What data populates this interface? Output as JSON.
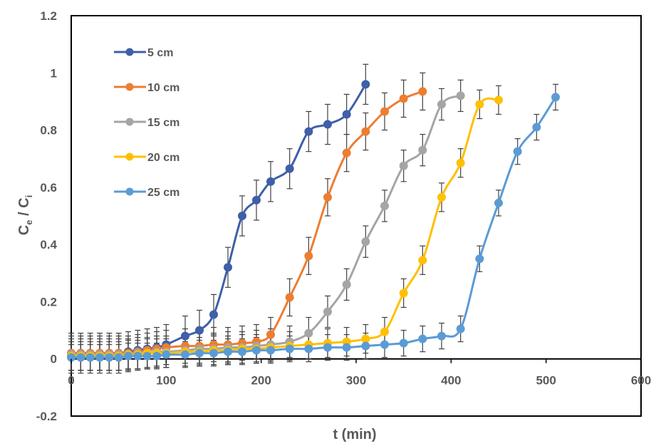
{
  "chart_data": {
    "type": "line",
    "title": "",
    "xlabel": "t (min)",
    "ylabel": "Ce / Ci",
    "ylabel_parts": {
      "main1": "C",
      "sub1": "e",
      "sep": " / ",
      "main2": "C",
      "sub2": "i"
    },
    "xlim": [
      0,
      600
    ],
    "ylim": [
      -0.2,
      1.2
    ],
    "x_ticks": [
      "0",
      "100",
      "200",
      "300",
      "400",
      "500",
      "600"
    ],
    "y_ticks": [
      "-0.2",
      "0",
      "0.2",
      "0.4",
      "0.6",
      "0.8",
      "1",
      "1.2"
    ],
    "grid": false,
    "legend_position": "top-left",
    "series": [
      {
        "name": "5 cm",
        "color": "#3f5fa8",
        "x": [
          0,
          10,
          20,
          30,
          40,
          50,
          60,
          70,
          80,
          90,
          100,
          120,
          135,
          150,
          165,
          180,
          195,
          210,
          230,
          250,
          270,
          290,
          310
        ],
        "y": [
          0.02,
          0.02,
          0.02,
          0.02,
          0.02,
          0.02,
          0.025,
          0.03,
          0.035,
          0.04,
          0.05,
          0.08,
          0.1,
          0.155,
          0.32,
          0.5,
          0.555,
          0.62,
          0.665,
          0.795,
          0.82,
          0.855,
          0.96
        ],
        "err": [
          0.07,
          0.07,
          0.07,
          0.07,
          0.07,
          0.07,
          0.07,
          0.07,
          0.07,
          0.07,
          0.07,
          0.07,
          0.07,
          0.07,
          0.07,
          0.07,
          0.07,
          0.07,
          0.07,
          0.07,
          0.07,
          0.07,
          0.07
        ]
      },
      {
        "name": "10 cm",
        "color": "#ed7d31",
        "x": [
          0,
          10,
          20,
          30,
          40,
          50,
          60,
          70,
          80,
          90,
          100,
          120,
          135,
          150,
          165,
          180,
          195,
          210,
          230,
          250,
          270,
          290,
          310,
          330,
          350,
          370
        ],
        "y": [
          0.02,
          0.02,
          0.02,
          0.02,
          0.02,
          0.02,
          0.02,
          0.025,
          0.03,
          0.035,
          0.04,
          0.045,
          0.045,
          0.05,
          0.05,
          0.055,
          0.06,
          0.085,
          0.215,
          0.36,
          0.565,
          0.72,
          0.795,
          0.865,
          0.91,
          0.935
        ],
        "err": [
          0.06,
          0.06,
          0.06,
          0.06,
          0.06,
          0.06,
          0.06,
          0.06,
          0.06,
          0.06,
          0.06,
          0.06,
          0.06,
          0.06,
          0.06,
          0.06,
          0.06,
          0.06,
          0.065,
          0.065,
          0.065,
          0.065,
          0.065,
          0.065,
          0.065,
          0.065
        ]
      },
      {
        "name": "15 cm",
        "color": "#a5a5a5",
        "x": [
          0,
          10,
          20,
          30,
          40,
          50,
          60,
          70,
          80,
          90,
          100,
          120,
          135,
          150,
          165,
          180,
          195,
          210,
          230,
          250,
          270,
          290,
          310,
          330,
          350,
          370,
          390,
          410
        ],
        "y": [
          0.015,
          0.015,
          0.015,
          0.015,
          0.015,
          0.015,
          0.015,
          0.02,
          0.02,
          0.025,
          0.025,
          0.03,
          0.035,
          0.035,
          0.04,
          0.04,
          0.045,
          0.05,
          0.06,
          0.09,
          0.165,
          0.26,
          0.41,
          0.535,
          0.675,
          0.73,
          0.89,
          0.92
        ],
        "err": [
          0.055,
          0.055,
          0.055,
          0.055,
          0.055,
          0.055,
          0.055,
          0.055,
          0.055,
          0.055,
          0.055,
          0.055,
          0.055,
          0.055,
          0.055,
          0.055,
          0.055,
          0.055,
          0.055,
          0.055,
          0.055,
          0.055,
          0.055,
          0.055,
          0.055,
          0.055,
          0.055,
          0.055
        ]
      },
      {
        "name": "20 cm",
        "color": "#ffc000",
        "x": [
          0,
          10,
          20,
          30,
          40,
          50,
          60,
          70,
          80,
          90,
          100,
          120,
          135,
          150,
          165,
          180,
          195,
          210,
          230,
          250,
          270,
          290,
          310,
          330,
          350,
          370,
          390,
          410,
          430,
          450
        ],
        "y": [
          0.01,
          0.01,
          0.01,
          0.01,
          0.01,
          0.01,
          0.015,
          0.015,
          0.02,
          0.02,
          0.02,
          0.025,
          0.025,
          0.03,
          0.03,
          0.035,
          0.035,
          0.04,
          0.045,
          0.05,
          0.055,
          0.06,
          0.07,
          0.095,
          0.23,
          0.345,
          0.565,
          0.685,
          0.89,
          0.905
        ],
        "err": [
          0.05,
          0.05,
          0.05,
          0.05,
          0.05,
          0.05,
          0.05,
          0.05,
          0.05,
          0.05,
          0.05,
          0.05,
          0.05,
          0.05,
          0.05,
          0.05,
          0.05,
          0.05,
          0.05,
          0.05,
          0.05,
          0.05,
          0.05,
          0.05,
          0.05,
          0.05,
          0.05,
          0.05,
          0.05,
          0.05
        ]
      },
      {
        "name": "25 cm",
        "color": "#5b9bd5",
        "x": [
          0,
          10,
          20,
          30,
          40,
          50,
          60,
          70,
          80,
          90,
          100,
          120,
          135,
          150,
          165,
          180,
          195,
          210,
          230,
          250,
          270,
          290,
          310,
          330,
          350,
          370,
          390,
          410,
          430,
          450,
          470,
          490,
          510
        ],
        "y": [
          0.005,
          0.005,
          0.005,
          0.005,
          0.005,
          0.005,
          0.01,
          0.01,
          0.01,
          0.01,
          0.015,
          0.015,
          0.02,
          0.02,
          0.025,
          0.025,
          0.03,
          0.03,
          0.035,
          0.035,
          0.04,
          0.04,
          0.045,
          0.05,
          0.055,
          0.07,
          0.08,
          0.105,
          0.35,
          0.545,
          0.725,
          0.81,
          0.915
        ],
        "err": [
          0.045,
          0.045,
          0.045,
          0.045,
          0.045,
          0.045,
          0.045,
          0.045,
          0.045,
          0.045,
          0.045,
          0.045,
          0.045,
          0.045,
          0.045,
          0.045,
          0.045,
          0.045,
          0.045,
          0.045,
          0.045,
          0.045,
          0.045,
          0.045,
          0.045,
          0.045,
          0.045,
          0.045,
          0.045,
          0.045,
          0.045,
          0.045,
          0.045
        ]
      }
    ]
  }
}
